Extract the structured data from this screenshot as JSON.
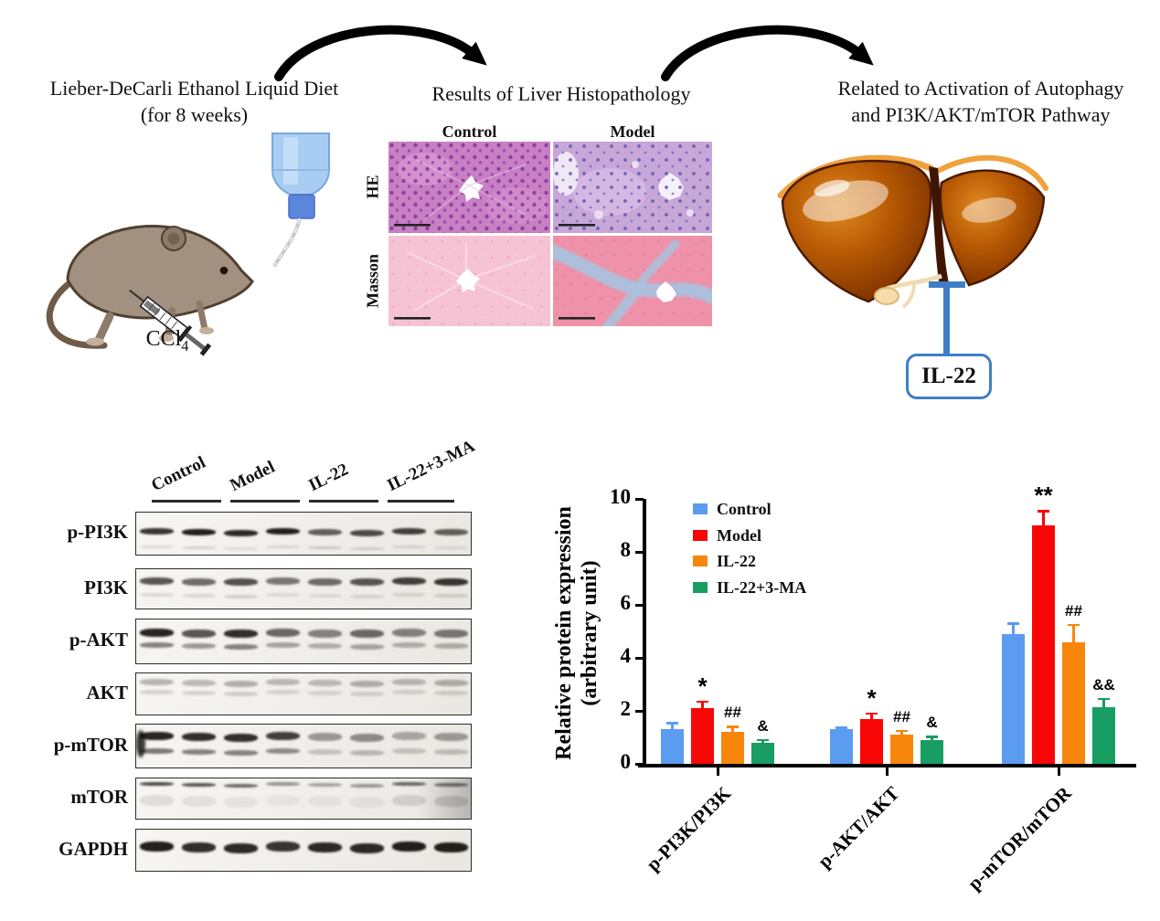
{
  "top": {
    "left_title_line1": "Lieber-DeCarli Ethanol Liquid Diet",
    "left_title_line2": "(for 8 weeks)",
    "ccl4_main": "CCl",
    "ccl4_sub": "4",
    "middle_title": "Results of Liver Histopathology",
    "histology": {
      "columns": [
        "Control",
        "Model"
      ],
      "rows": [
        "HE",
        "Masson"
      ]
    },
    "right_title_line1": "Related to Activation of Autophagy",
    "right_title_line2": "and PI3K/AKT/mTOR Pathway",
    "il22_label": "IL-22"
  },
  "western_blot": {
    "group_labels": [
      "Control",
      "Model",
      "IL-22",
      "IL-22+3-MA"
    ],
    "rows": [
      "p-PI3K",
      "PI3K",
      "p-AKT",
      "AKT",
      "p-mTOR",
      "mTOR",
      "GAPDH"
    ]
  },
  "chart_data": {
    "type": "bar",
    "title": "",
    "ylabel_line1": "Relative protein expression",
    "ylabel_line2": "(arbitrary unit)",
    "categories": [
      "p-PI3K/PI3K",
      "p-AKT/AKT",
      "p-mTOR/mTOR"
    ],
    "series": [
      {
        "name": "Control",
        "color": "#5B9BF0",
        "values": [
          1.3,
          1.3,
          4.9
        ],
        "errors": [
          0.25,
          0.07,
          0.4
        ],
        "sig": [
          "",
          "",
          ""
        ]
      },
      {
        "name": "Model",
        "color": "#F90606",
        "values": [
          2.1,
          1.7,
          9.0
        ],
        "errors": [
          0.25,
          0.2,
          0.55
        ],
        "sig": [
          "*",
          "*",
          "**"
        ]
      },
      {
        "name": "IL-22",
        "color": "#F8860D",
        "values": [
          1.2,
          1.1,
          4.6
        ],
        "errors": [
          0.2,
          0.15,
          0.65
        ],
        "sig": [
          "##",
          "##",
          "##"
        ]
      },
      {
        "name": "IL-22+3-MA",
        "color": "#189E62",
        "values": [
          0.8,
          0.9,
          2.15
        ],
        "errors": [
          0.1,
          0.12,
          0.3
        ],
        "sig": [
          "&",
          "&",
          "&&"
        ]
      }
    ],
    "ylim": [
      0,
      10
    ],
    "yticks": [
      0,
      2,
      4,
      6,
      8,
      10
    ],
    "legend_position": "upper-left-inside",
    "grid": false
  }
}
